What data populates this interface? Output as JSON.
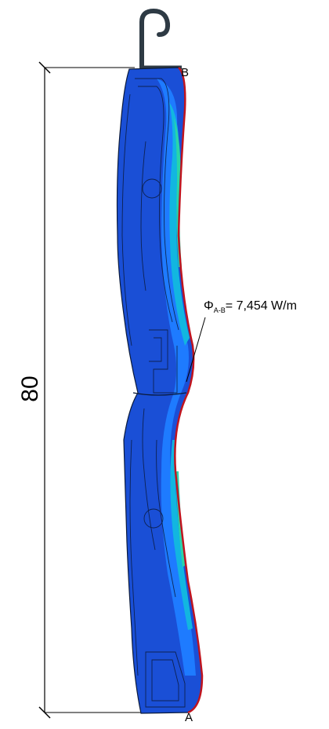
{
  "diagram": {
    "dimension_value": "80",
    "point_top_label": "B",
    "point_bottom_label": "A",
    "flux": {
      "symbol": "Φ",
      "subscript": "A-B",
      "value_text": "= 7,454 W/m"
    },
    "colors": {
      "cold": "#1a4fd6",
      "cool": "#1e7bff",
      "mid": "#12b6e0",
      "warm": "#2ad5a8",
      "hot_edge": "#c0141e",
      "hook": "#2e3a44",
      "contour": "#0b1a3a"
    }
  }
}
